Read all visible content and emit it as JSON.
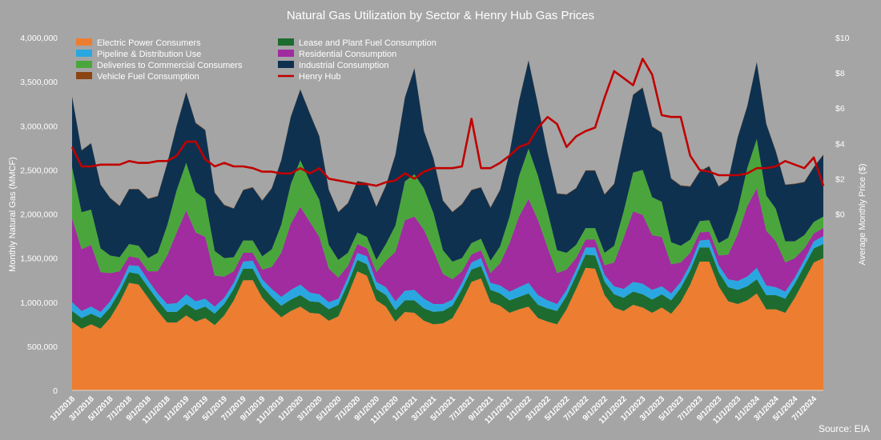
{
  "chart_data": {
    "type": "area",
    "title": "Natural Gas Utilization by Sector & Henry Hub Gas Prices",
    "ylabel": "Monthly Natural Gas (MMCF)",
    "y2label": "Average Monthly Price ($)",
    "source": "Source: EIA",
    "ylim": [
      0,
      4000000
    ],
    "y2lim": [
      -10,
      10
    ],
    "yticks": [
      "0",
      "500,000",
      "1,000,000",
      "1,500,000",
      "2,000,000",
      "2,500,000",
      "3,000,000",
      "3,500,000",
      "4,000,000"
    ],
    "y2ticks": [
      "$0",
      "$2",
      "$4",
      "$6",
      "$8",
      "$10"
    ],
    "xtick_labels": [
      "1/1/2018",
      "3/1/2018",
      "5/1/2018",
      "7/1/2018",
      "9/1/2018",
      "11/1/2018",
      "1/1/2019",
      "3/1/2019",
      "5/1/2019",
      "7/1/2019",
      "9/1/2019",
      "11/1/2019",
      "1/1/2020",
      "3/1/2020",
      "5/1/2020",
      "7/1/2020",
      "9/1/2020",
      "11/1/2020",
      "1/1/2021",
      "3/1/2021",
      "5/1/2021",
      "7/1/2021",
      "9/1/2021",
      "11/1/2021",
      "1/1/2022",
      "3/1/2022",
      "5/1/2022",
      "7/1/2022",
      "9/1/2022",
      "11/1/2022",
      "1/1/2023",
      "3/1/2023",
      "5/1/2023",
      "7/1/2023",
      "9/1/2023",
      "11/1/2023",
      "1/1/2024",
      "3/1/2024",
      "5/1/2024",
      "7/1/2024"
    ],
    "n_months": 80,
    "series": [
      {
        "name": "Electric Power Consumers",
        "color": "#ed7d31",
        "kind": "area",
        "values": [
          780000,
          700000,
          750000,
          700000,
          820000,
          1000000,
          1220000,
          1200000,
          1050000,
          900000,
          770000,
          770000,
          850000,
          780000,
          820000,
          740000,
          850000,
          1020000,
          1250000,
          1250000,
          1050000,
          930000,
          830000,
          900000,
          950000,
          880000,
          870000,
          790000,
          840000,
          1080000,
          1350000,
          1300000,
          1020000,
          950000,
          780000,
          890000,
          880000,
          790000,
          750000,
          760000,
          820000,
          1010000,
          1230000,
          1270000,
          1000000,
          960000,
          880000,
          920000,
          950000,
          820000,
          780000,
          750000,
          920000,
          1150000,
          1390000,
          1380000,
          1080000,
          940000,
          900000,
          970000,
          940000,
          880000,
          940000,
          870000,
          1000000,
          1200000,
          1460000,
          1460000,
          1180000,
          1010000,
          980000,
          1020000,
          1100000,
          920000,
          920000,
          880000,
          1050000,
          1250000,
          1450000,
          1500000
        ]
      },
      {
        "name": "Lease and Plant Fuel Consumption",
        "color": "#1e6b2f",
        "kind": "area",
        "values": [
          120000,
          120000,
          120000,
          120000,
          120000,
          120000,
          120000,
          120000,
          120000,
          120000,
          120000,
          120000,
          130000,
          130000,
          130000,
          130000,
          130000,
          130000,
          130000,
          130000,
          130000,
          130000,
          130000,
          130000,
          130000,
          130000,
          130000,
          130000,
          130000,
          130000,
          130000,
          130000,
          130000,
          130000,
          130000,
          130000,
          140000,
          140000,
          140000,
          140000,
          140000,
          140000,
          140000,
          140000,
          140000,
          140000,
          140000,
          140000,
          150000,
          150000,
          150000,
          150000,
          150000,
          150000,
          150000,
          150000,
          150000,
          150000,
          150000,
          150000,
          150000,
          150000,
          150000,
          150000,
          160000,
          160000,
          160000,
          160000,
          160000,
          160000,
          160000,
          160000,
          160000,
          160000,
          160000,
          160000,
          160000,
          160000,
          160000,
          160000
        ]
      },
      {
        "name": "Pipeline & Distribution Use",
        "color": "#2aa7e0",
        "kind": "area",
        "values": [
          100000,
          80000,
          80000,
          70000,
          70000,
          70000,
          80000,
          90000,
          80000,
          80000,
          90000,
          100000,
          110000,
          100000,
          90000,
          80000,
          70000,
          70000,
          80000,
          90000,
          80000,
          90000,
          100000,
          110000,
          120000,
          100000,
          90000,
          80000,
          70000,
          70000,
          80000,
          90000,
          80000,
          90000,
          100000,
          110000,
          120000,
          110000,
          90000,
          80000,
          70000,
          70000,
          80000,
          90000,
          80000,
          90000,
          100000,
          110000,
          120000,
          110000,
          90000,
          80000,
          70000,
          70000,
          80000,
          90000,
          80000,
          90000,
          100000,
          110000,
          120000,
          110000,
          90000,
          80000,
          70000,
          70000,
          80000,
          90000,
          80000,
          90000,
          100000,
          110000,
          130000,
          110000,
          90000,
          80000,
          70000,
          70000,
          80000,
          90000
        ]
      },
      {
        "name": "Residential Consumption",
        "color": "#a02ca0",
        "kind": "area",
        "values": [
          950000,
          700000,
          700000,
          450000,
          320000,
          160000,
          100000,
          90000,
          100000,
          250000,
          550000,
          800000,
          950000,
          780000,
          700000,
          350000,
          240000,
          130000,
          100000,
          90000,
          110000,
          250000,
          500000,
          750000,
          880000,
          800000,
          650000,
          380000,
          240000,
          130000,
          100000,
          90000,
          110000,
          300000,
          560000,
          800000,
          830000,
          780000,
          600000,
          340000,
          230000,
          130000,
          90000,
          90000,
          110000,
          250000,
          550000,
          800000,
          950000,
          850000,
          600000,
          350000,
          230000,
          130000,
          90000,
          90000,
          110000,
          270000,
          580000,
          800000,
          780000,
          620000,
          560000,
          330000,
          220000,
          130000,
          90000,
          90000,
          110000,
          280000,
          530000,
          800000,
          900000,
          620000,
          520000,
          330000,
          220000,
          130000,
          90000,
          90000
        ]
      },
      {
        "name": "Deliveries to Commercial Consumers",
        "color": "#4aa63c",
        "kind": "area",
        "values": [
          580000,
          420000,
          400000,
          270000,
          200000,
          160000,
          140000,
          140000,
          150000,
          210000,
          340000,
          480000,
          540000,
          460000,
          430000,
          280000,
          210000,
          160000,
          140000,
          140000,
          150000,
          200000,
          320000,
          450000,
          530000,
          460000,
          420000,
          270000,
          200000,
          150000,
          130000,
          130000,
          140000,
          190000,
          300000,
          440000,
          480000,
          470000,
          430000,
          270000,
          200000,
          150000,
          130000,
          130000,
          140000,
          190000,
          300000,
          460000,
          570000,
          500000,
          410000,
          260000,
          190000,
          150000,
          130000,
          130000,
          140000,
          190000,
          300000,
          440000,
          510000,
          430000,
          400000,
          250000,
          190000,
          150000,
          130000,
          130000,
          140000,
          190000,
          280000,
          430000,
          560000,
          400000,
          370000,
          240000,
          190000,
          150000,
          130000,
          130000
        ]
      },
      {
        "name": "Industrial Consumption",
        "color": "#0e3150",
        "kind": "area",
        "values": [
          800000,
          700000,
          750000,
          720000,
          650000,
          580000,
          620000,
          640000,
          670000,
          640000,
          700000,
          730000,
          800000,
          780000,
          780000,
          660000,
          600000,
          550000,
          570000,
          600000,
          630000,
          690000,
          730000,
          760000,
          800000,
          770000,
          720000,
          620000,
          540000,
          560000,
          580000,
          610000,
          600000,
          660000,
          800000,
          950000,
          1200000,
          650000,
          620000,
          560000,
          560000,
          610000,
          600000,
          580000,
          600000,
          640000,
          720000,
          850000,
          1000000,
          800000,
          660000,
          640000,
          660000,
          640000,
          650000,
          650000,
          660000,
          700000,
          820000,
          880000,
          930000,
          800000,
          780000,
          720000,
          680000,
          600000,
          560000,
          610000,
          640000,
          650000,
          820000,
          700000,
          870000,
          810000,
          650000,
          640000,
          650000,
          600000,
          620000,
          700000
        ]
      },
      {
        "name": "Vehicle Fuel Consumption",
        "color": "#8b4513",
        "kind": "area",
        "values": [
          5000,
          5000,
          5000,
          5000,
          5000,
          5000,
          5000,
          5000,
          5000,
          5000,
          5000,
          5000,
          5000,
          5000,
          5000,
          5000,
          5000,
          5000,
          5000,
          5000,
          5000,
          5000,
          5000,
          5000,
          5000,
          5000,
          5000,
          5000,
          5000,
          5000,
          5000,
          5000,
          5000,
          5000,
          5000,
          5000,
          5000,
          5000,
          5000,
          5000,
          5000,
          5000,
          5000,
          5000,
          5000,
          5000,
          5000,
          5000,
          5000,
          5000,
          5000,
          5000,
          5000,
          5000,
          5000,
          5000,
          5000,
          5000,
          5000,
          5000,
          5000,
          5000,
          5000,
          5000,
          5000,
          5000,
          5000,
          5000,
          5000,
          5000,
          5000,
          5000,
          5000,
          5000,
          5000,
          5000,
          5000,
          5000,
          5000,
          5000
        ]
      },
      {
        "name": "Henry Hub",
        "color": "#c00000",
        "kind": "line",
        "axis": "y2",
        "values": [
          3.8,
          2.7,
          2.7,
          2.8,
          2.8,
          2.8,
          3.0,
          2.9,
          2.9,
          3.0,
          3.0,
          3.3,
          4.1,
          4.1,
          3.1,
          2.7,
          2.9,
          2.7,
          2.7,
          2.6,
          2.4,
          2.4,
          2.3,
          2.3,
          2.6,
          2.3,
          2.6,
          2.0,
          1.9,
          1.8,
          1.7,
          1.7,
          1.6,
          1.8,
          1.9,
          2.3,
          2.0,
          2.4,
          2.6,
          2.6,
          2.6,
          2.7,
          5.4,
          2.6,
          2.6,
          2.9,
          3.3,
          3.8,
          4.0,
          4.9,
          5.5,
          5.1,
          3.8,
          4.4,
          4.7,
          4.9,
          6.6,
          8.1,
          7.7,
          7.3,
          8.8,
          7.9,
          5.6,
          5.5,
          5.5,
          3.3,
          2.5,
          2.4,
          2.2,
          2.2,
          2.2,
          2.3,
          2.6,
          2.6,
          2.7,
          3.0,
          2.8,
          2.6,
          3.2,
          1.6
        ]
      }
    ],
    "legend": [
      {
        "label": "Electric Power Consumers",
        "color": "#ed7d31"
      },
      {
        "label": "Lease and Plant Fuel Consumption",
        "color": "#1e6b2f"
      },
      {
        "label": "Pipeline & Distribution Use",
        "color": "#2aa7e0"
      },
      {
        "label": "Residential Consumption",
        "color": "#a02ca0"
      },
      {
        "label": "Deliveries to Commercial Consumers",
        "color": "#4aa63c"
      },
      {
        "label": "Industrial Consumption",
        "color": "#0e3150"
      },
      {
        "label": "Vehicle Fuel Consumption",
        "color": "#8b4513"
      },
      {
        "label": "Henry Hub",
        "color": "#c00000",
        "line": true
      }
    ]
  }
}
